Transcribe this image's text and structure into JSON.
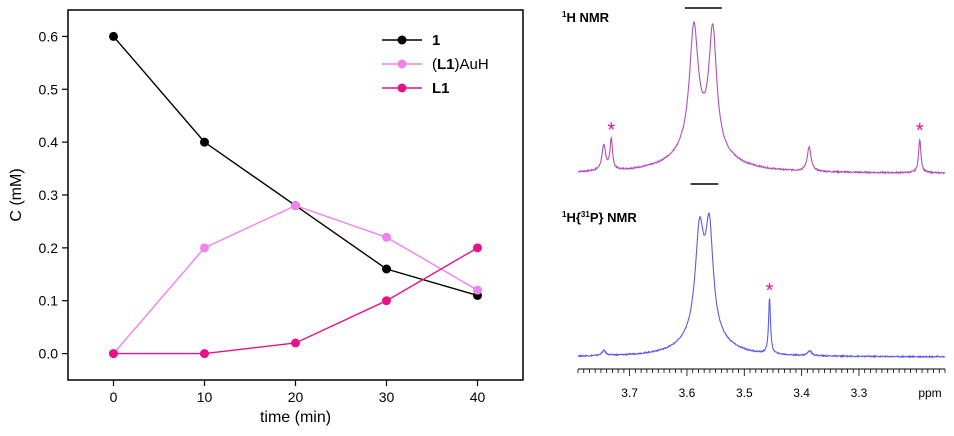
{
  "chart_data": [
    {
      "type": "line",
      "xlabel": "time (min)",
      "ylabel": "C (mM)",
      "xlim": [
        -5,
        45
      ],
      "ylim": [
        -0.05,
        0.65
      ],
      "xticks": [
        0,
        10,
        20,
        30,
        40
      ],
      "xtick_labels": [
        "0",
        "10",
        "20",
        "30",
        "40"
      ],
      "yticks": [
        0.0,
        0.1,
        0.2,
        0.3,
        0.4,
        0.5,
        0.6
      ],
      "ytick_labels": [
        "0.0",
        "0.1",
        "0.2",
        "0.3",
        "0.4",
        "0.5",
        "0.6"
      ],
      "legend_position": "top-right",
      "grid": false,
      "x": [
        0,
        10,
        20,
        30,
        40
      ],
      "series": [
        {
          "name": "1",
          "legend_parts": [
            {
              "t": "1",
              "b": true
            }
          ],
          "color": "#000000",
          "values": [
            0.6,
            0.4,
            0.28,
            0.16,
            0.11
          ]
        },
        {
          "name": "(L1)AuH",
          "legend_parts": [
            {
              "t": "(",
              "b": false
            },
            {
              "t": "L1",
              "b": true
            },
            {
              "t": ")AuH",
              "b": false
            }
          ],
          "color": "#ee82ee",
          "values": [
            0.0,
            0.2,
            0.28,
            0.22,
            0.12
          ]
        },
        {
          "name": "L1",
          "legend_parts": [
            {
              "t": "L1",
              "b": true
            }
          ],
          "color": "#e8118a",
          "values": [
            0.0,
            0.0,
            0.02,
            0.1,
            0.2
          ]
        }
      ]
    },
    {
      "type": "line",
      "xlabel": "ppm",
      "xlim": [
        3.79,
        3.15
      ],
      "xticks": [
        3.7,
        3.6,
        3.5,
        3.4,
        3.3
      ],
      "xtick_labels": [
        "3.7",
        "3.6",
        "3.5",
        "3.4",
        "3.3"
      ],
      "xminor_step": 0.01,
      "spectra": [
        {
          "label_parts": [
            {
              "t": "1",
              "sup": true
            },
            {
              "t": "H NMR",
              "sup": false
            }
          ],
          "color": "#b150b8",
          "baseline": 0.04,
          "peaks": [
            {
              "ppm": 3.745,
              "height": 0.22,
              "width": 0.004
            },
            {
              "ppm": 3.732,
              "height": 0.27,
              "width": 0.0025
            },
            {
              "ppm": 3.588,
              "height": 1.0,
              "width": 0.009
            },
            {
              "ppm": 3.555,
              "height": 1.0,
              "width": 0.008
            },
            {
              "ppm": 3.387,
              "height": 0.21,
              "width": 0.004
            },
            {
              "ppm": 3.194,
              "height": 0.29,
              "width": 0.0025
            }
          ],
          "broad": [
            {
              "ppm": 3.575,
              "height": 0.28,
              "width": 0.045
            }
          ],
          "truncated": true,
          "annotations": [
            {
              "text": "*",
              "ppm": 3.732
            },
            {
              "text": "*",
              "ppm": 3.194
            }
          ]
        },
        {
          "label_parts": [
            {
              "t": "1",
              "sup": true
            },
            {
              "t": "H{",
              "sup": false
            },
            {
              "t": "31",
              "sup": true
            },
            {
              "t": "P} NMR",
              "sup": false
            }
          ],
          "color": "#5b5bea",
          "baseline": 0.0,
          "peaks": [
            {
              "ppm": 3.745,
              "height": 0.05,
              "width": 0.004
            },
            {
              "ppm": 3.578,
              "height": 1.0,
              "width": 0.009
            },
            {
              "ppm": 3.561,
              "height": 1.0,
              "width": 0.008
            },
            {
              "ppm": 3.456,
              "height": 0.56,
              "width": 0.002
            },
            {
              "ppm": 3.386,
              "height": 0.05,
              "width": 0.004
            }
          ],
          "broad": [
            {
              "ppm": 3.57,
              "height": 0.22,
              "width": 0.04
            }
          ],
          "truncated": true,
          "annotations": [
            {
              "text": "*",
              "ppm": 3.456
            }
          ]
        }
      ]
    }
  ]
}
